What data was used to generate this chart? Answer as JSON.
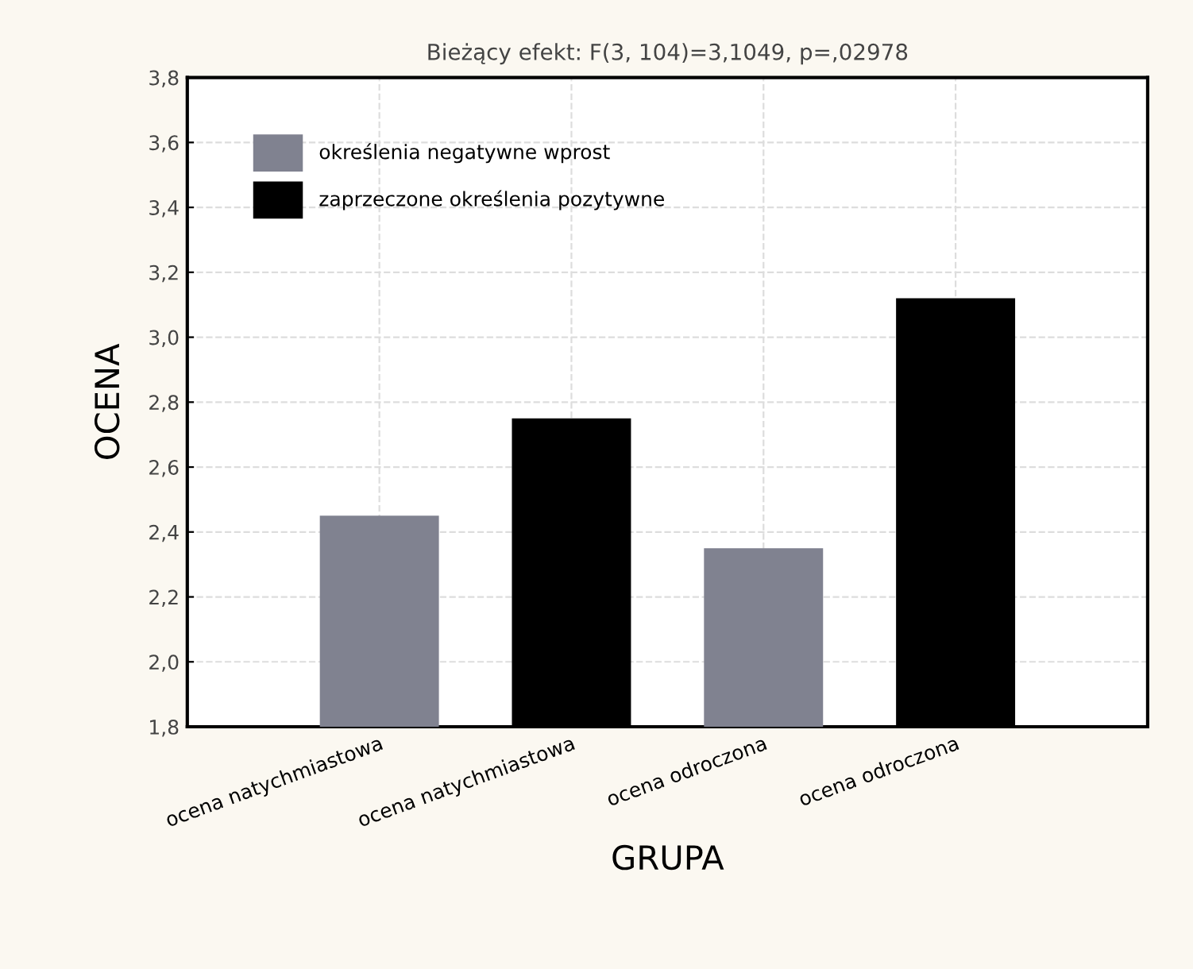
{
  "chart_data": {
    "type": "bar",
    "title": "Bieżący efekt: F(3, 104)=3,1049, p=,02978",
    "xlabel": "GRUPA",
    "ylabel": "OCENA",
    "categories": [
      "ocena natychmiastowa",
      "ocena natychmiastowa",
      "ocena odroczona",
      "ocena odroczona"
    ],
    "series": [
      {
        "name": "określenia negatywne wprost",
        "color": "#808290",
        "values": [
          2.45,
          null,
          2.35,
          null
        ]
      },
      {
        "name": "zaprzeczone określenia pozytywne",
        "color": "#000000",
        "values": [
          null,
          2.75,
          null,
          3.12
        ]
      }
    ],
    "ylim": [
      1.8,
      3.8
    ],
    "yticks": [
      {
        "value": 1.8,
        "label": "1,8"
      },
      {
        "value": 2.0,
        "label": "2,0"
      },
      {
        "value": 2.2,
        "label": "2,2"
      },
      {
        "value": 2.4,
        "label": "2,4"
      },
      {
        "value": 2.6,
        "label": "2,6"
      },
      {
        "value": 2.8,
        "label": "2,8"
      },
      {
        "value": 3.0,
        "label": "3,0"
      },
      {
        "value": 3.2,
        "label": "3,2"
      },
      {
        "value": 3.4,
        "label": "3,4"
      },
      {
        "value": 3.6,
        "label": "3,6"
      },
      {
        "value": 3.8,
        "label": "3,8"
      }
    ],
    "grid": true,
    "legend": "top left"
  }
}
